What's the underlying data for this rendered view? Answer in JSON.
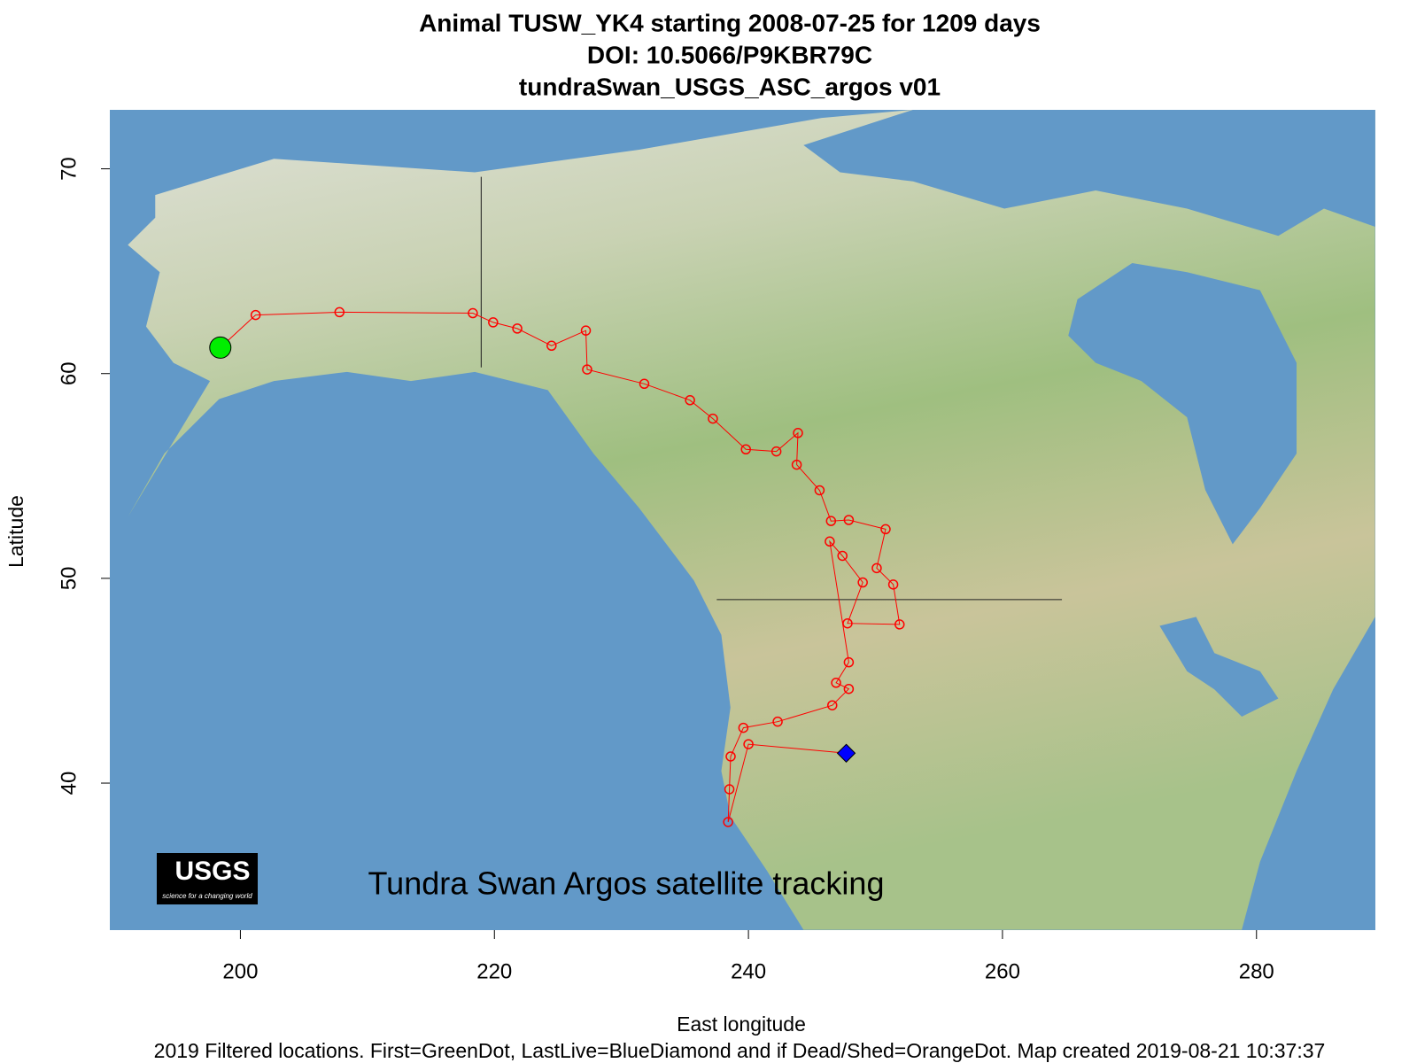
{
  "chart_data": {
    "type": "track",
    "title": [
      "Animal  TUSW_YK4 starting  2008-07-25 for 1209 days",
      "DOI: 10.5066/P9KBR79C",
      "tundraSwan_USGS_ASC_argos v01"
    ],
    "xlabel": "East longitude",
    "ylabel": "Latitude",
    "footnote": "2019 Filtered locations. First=GreenDot, LastLive=BlueDiamond and if Dead/Shed=OrangeDot. Map created  2019-08-21 10:37:37",
    "annotation": "Tundra Swan Argos satellite tracking",
    "logo": [
      "USGS",
      "science for a changing world"
    ],
    "xlim": [
      189.72,
      289.36
    ],
    "ylim": [
      32.82,
      72.88
    ],
    "xticks": [
      200,
      220,
      240,
      260,
      280
    ],
    "yticks": [
      40,
      50,
      60,
      70
    ],
    "color": "#ff0000",
    "x": [
      198.42,
      201.2,
      207.8,
      218.3,
      219.9,
      221.8,
      224.5,
      227.2,
      227.3,
      231.8,
      235.4,
      237.2,
      239.8,
      242.2,
      243.9,
      243.8,
      245.6,
      246.5,
      247.9,
      250.8,
      250.1,
      251.4,
      251.9,
      247.8,
      249.0,
      247.4,
      246.4,
      247.9,
      246.9,
      247.9,
      246.6,
      242.3,
      239.6,
      238.6,
      238.5,
      238.4,
      240.0,
      247.7
    ],
    "y": [
      61.27,
      62.86,
      63.0,
      62.95,
      62.5,
      62.2,
      61.36,
      62.1,
      60.2,
      59.5,
      58.7,
      57.8,
      56.3,
      56.2,
      57.1,
      55.55,
      54.3,
      52.8,
      52.85,
      52.4,
      50.5,
      49.7,
      47.75,
      47.8,
      49.8,
      51.1,
      51.8,
      45.9,
      44.9,
      44.6,
      43.8,
      43.0,
      42.7,
      41.3,
      39.7,
      38.1,
      41.9,
      41.46
    ],
    "first": {
      "x": 198.42,
      "y": 61.27,
      "color": "#00ee00"
    },
    "last": {
      "x": 247.7,
      "y": 41.46,
      "color": "#0000ff"
    }
  }
}
